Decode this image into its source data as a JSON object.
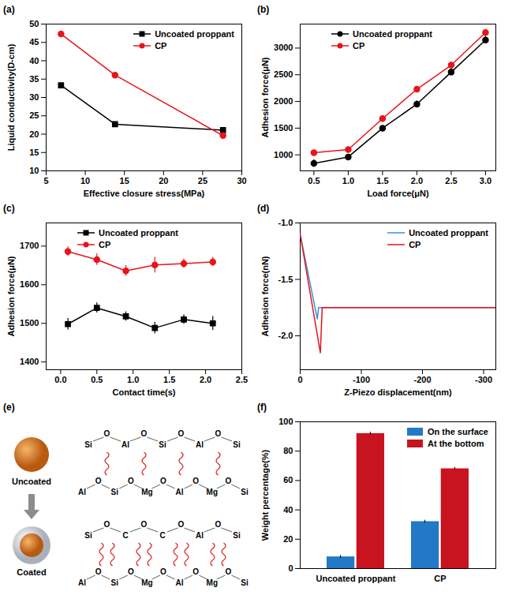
{
  "chart_data": [
    {
      "title": "(a)",
      "type": "line",
      "x_label": "Effective closure stress(MPa)",
      "y_label": "Liquid conductivity(D-cm)",
      "x": [
        6.9,
        13.8,
        27.6
      ],
      "series": [
        {
          "name": "Uncoated proppant",
          "color": "#000000",
          "marker": "square",
          "values": [
            33.3,
            22.7,
            21.1
          ]
        },
        {
          "name": "CP",
          "color": "#e8141a",
          "marker": "circle",
          "values": [
            47.3,
            36.1,
            19.6
          ]
        }
      ],
      "xlim": [
        5,
        30
      ],
      "xticks": [
        5,
        10,
        15,
        20,
        25,
        30
      ],
      "ylim": [
        10,
        50
      ],
      "yticks": [
        10,
        15,
        20,
        25,
        30,
        35,
        40,
        45,
        50
      ],
      "legend": "upper right"
    },
    {
      "title": "(b)",
      "type": "line",
      "x_label": "Load force(μN)",
      "y_label": "Adhesion force(μN)",
      "x": [
        0.5,
        1.0,
        1.5,
        2.0,
        2.5,
        3.0
      ],
      "series": [
        {
          "name": "Uncoated proppant",
          "color": "#000000",
          "marker": "circle",
          "values": [
            840,
            960,
            1500,
            1950,
            2550,
            3150
          ],
          "errors": [
            70,
            50,
            40,
            60,
            60,
            70
          ]
        },
        {
          "name": "CP",
          "color": "#e8141a",
          "marker": "circle",
          "values": [
            1040,
            1100,
            1680,
            2230,
            2680,
            3290
          ],
          "errors": [
            40,
            30,
            50,
            30,
            60,
            60
          ]
        }
      ],
      "xlim": [
        0.3,
        3.15
      ],
      "xticks": [
        {
          "value": 0.5,
          "label": "0.5"
        },
        {
          "value": 1,
          "label": "1.0"
        },
        {
          "value": 1.5,
          "label": "1.5"
        },
        {
          "value": 2,
          "label": "2.0"
        },
        {
          "value": 2.5,
          "label": "2.5"
        },
        {
          "value": 3,
          "label": "3.0"
        }
      ],
      "ylim": [
        700,
        3450
      ],
      "yticks": [
        1000,
        1500,
        2000,
        2500,
        3000
      ],
      "legend": "upper left"
    },
    {
      "title": "(c)",
      "type": "line",
      "x_label": "Contact time(s)",
      "y_label": "Adhesion force(μN)",
      "x": [
        0.1,
        0.5,
        0.9,
        1.3,
        1.7,
        2.1
      ],
      "series": [
        {
          "name": "Uncoated proppant",
          "color": "#000000",
          "marker": "square",
          "values": [
            1498,
            1540,
            1518,
            1488,
            1510,
            1500
          ],
          "errors": [
            15,
            13,
            12,
            15,
            12,
            18
          ]
        },
        {
          "name": "CP",
          "color": "#e8141a",
          "marker": "circle",
          "values": [
            1686,
            1665,
            1636,
            1651,
            1655,
            1659
          ],
          "errors": [
            12,
            15,
            14,
            20,
            12,
            12
          ]
        }
      ],
      "xlim": [
        -0.2,
        2.5
      ],
      "xticks": [
        {
          "value": 0,
          "label": "0.0"
        },
        {
          "value": 0.5,
          "label": "0.5"
        },
        {
          "value": 1,
          "label": "1.0"
        },
        {
          "value": 1.5,
          "label": "1.5"
        },
        {
          "value": 2,
          "label": "2.0"
        },
        {
          "value": 2.5,
          "label": "2.5"
        }
      ],
      "ylim": [
        1380,
        1760
      ],
      "yticks": [
        1400,
        1500,
        1600,
        1700
      ],
      "legend": "upper left"
    },
    {
      "title": "(d)",
      "type": "line",
      "x_label": "Z-Piezo displacement(nm)",
      "y_label": "Adhesion force(nN)",
      "series": [
        {
          "name": "Uncoated proppant",
          "color": "#3a8fd8",
          "x": [
            0,
            -28,
            -30,
            -320
          ],
          "values": [
            -1.1,
            -1.85,
            -1.75,
            -1.75
          ]
        },
        {
          "name": "CP",
          "color": "#e8141a",
          "x": [
            0,
            -33,
            -36,
            -320
          ],
          "values": [
            -1.1,
            -2.15,
            -1.75,
            -1.75
          ]
        }
      ],
      "xlim": [
        0,
        -320
      ],
      "xticks": [
        0,
        -100,
        -200,
        -300
      ],
      "ylim": [
        -2.3,
        -1.0
      ],
      "yticks": [
        {
          "value": -1,
          "label": "-1.0"
        },
        {
          "value": -1.5,
          "label": "-1.5"
        },
        {
          "value": -2,
          "label": "-2.0"
        }
      ],
      "legend": "upper right"
    },
    {
      "title": "(e)",
      "type": "diagram",
      "bridge": "O",
      "states": [
        {
          "label": "Uncoated",
          "top_chain": [
            "Si",
            "Al",
            "Si",
            "Al",
            "Si"
          ],
          "bottom_chain": [
            "Al",
            "Si",
            "Mg",
            "Al",
            "Mg",
            "Si"
          ]
        },
        {
          "label": "Coated",
          "top_chain": [
            "Si",
            "C",
            "C",
            "Al",
            "Si"
          ],
          "bottom_chain": [
            "Al",
            "Si",
            "Mg",
            "Al",
            "Mg",
            "Si"
          ]
        }
      ]
    },
    {
      "title": "(f)",
      "type": "bar",
      "y_label": "Weight percentage(%)",
      "categories": [
        "Uncoated proppant",
        "CP"
      ],
      "series": [
        {
          "name": "On the surface",
          "color": "#2378c8",
          "values": [
            8,
            32
          ],
          "errors": [
            1,
            1
          ]
        },
        {
          "name": "At the bottom",
          "color": "#c8141e",
          "values": [
            92,
            68
          ],
          "errors": [
            1,
            1
          ]
        }
      ],
      "ylim": [
        0,
        100
      ],
      "yticks": [
        0,
        20,
        40,
        60,
        80,
        100
      ],
      "legend": "upper right"
    }
  ]
}
